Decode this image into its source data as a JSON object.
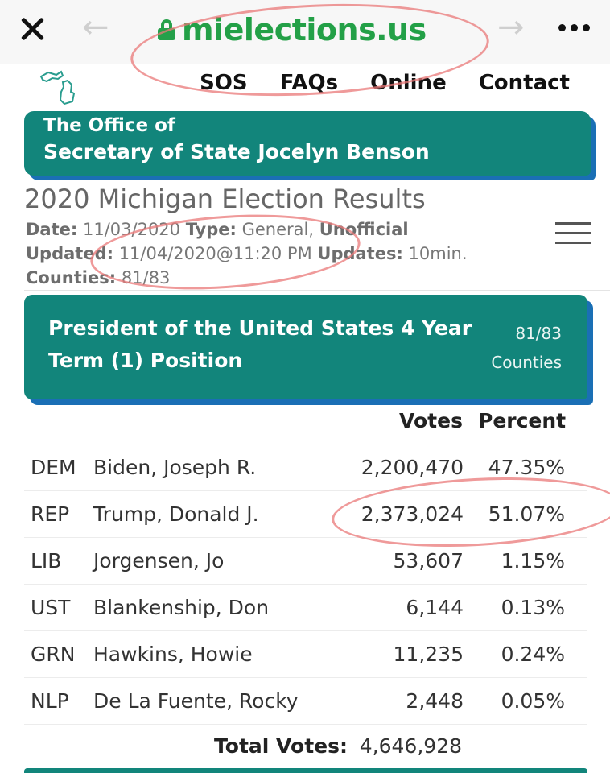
{
  "browser": {
    "url": "mielections.us",
    "icons": {
      "close": "close-icon",
      "back": "back-arrow-icon",
      "forward": "forward-arrow-icon",
      "lock": "lock-icon",
      "more": "more-dots-icon"
    },
    "url_color": "#23a047"
  },
  "nav": {
    "logo": "michigan-logo-icon",
    "links": [
      "SOS",
      "FAQs",
      "Online",
      "Contact"
    ]
  },
  "office": {
    "line1": "The Office of",
    "line2": "Secretary of State Jocelyn Benson",
    "color": "#12857b",
    "shadow_color": "#1a6fb5"
  },
  "page": {
    "title": "2020 Michigan Election Results",
    "date_label": "Date:",
    "date_value": "11/03/2020",
    "type_label": "Type:",
    "type_value": "General,",
    "type_extra": "Unofficial",
    "updated_label": "Updated:",
    "updated_value": "11/04/2020@11:20 PM",
    "updates_label": "Updates:",
    "updates_value": "10min.",
    "counties_label": "Counties:",
    "counties_value": "81/83"
  },
  "race": {
    "title": "President of the United States 4 Year Term (1) Position",
    "counties_count": "81/83",
    "counties_label": "Counties"
  },
  "results": {
    "columns": {
      "votes": "Votes",
      "percent": "Percent"
    },
    "rows": [
      {
        "party": "DEM",
        "candidate": "Biden, Joseph R.",
        "votes": "2,200,470",
        "percent": "47.35%"
      },
      {
        "party": "REP",
        "candidate": "Trump, Donald J.",
        "votes": "2,373,024",
        "percent": "51.07%"
      },
      {
        "party": "LIB",
        "candidate": "Jorgensen, Jo",
        "votes": "53,607",
        "percent": "1.15%"
      },
      {
        "party": "UST",
        "candidate": "Blankenship, Don",
        "votes": "6,144",
        "percent": "0.13%"
      },
      {
        "party": "GRN",
        "candidate": "Hawkins, Howie",
        "votes": "11,235",
        "percent": "0.24%"
      },
      {
        "party": "NLP",
        "candidate": "De La Fuente, Rocky",
        "votes": "2,448",
        "percent": "0.05%"
      }
    ],
    "total_label": "Total Votes:",
    "total_value": "4,646,928"
  },
  "annotation_color": "#e97878"
}
